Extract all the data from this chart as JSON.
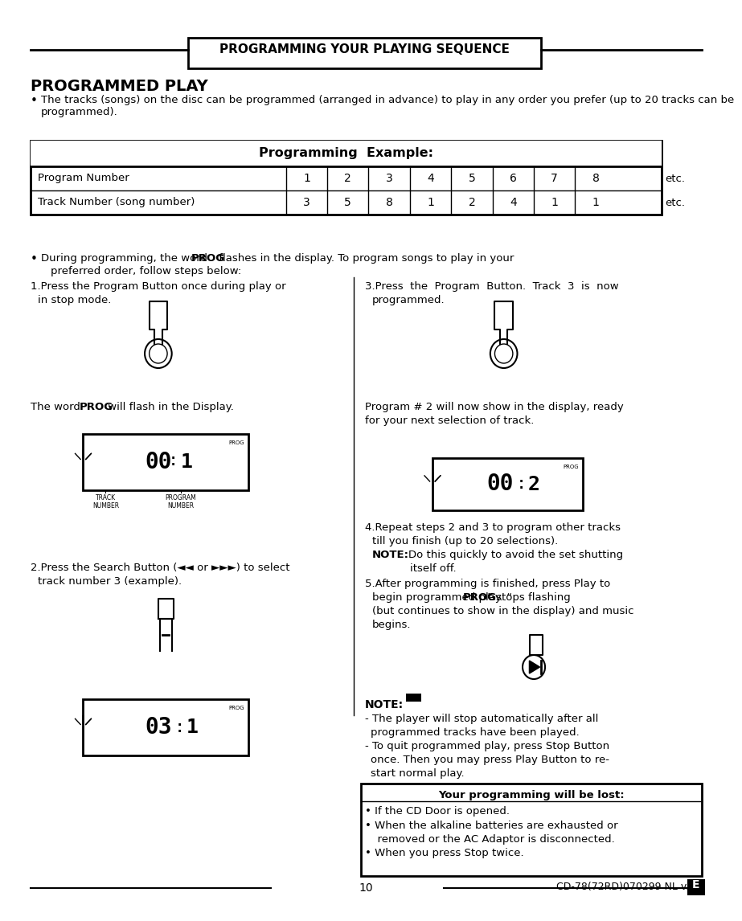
{
  "title": "PROGRAMMING YOUR PLAYING SEQUENCE",
  "section_title": "PROGRAMMED PLAY",
  "bullet1": "The tracks (songs) on the disc can be programmed (arranged in advance) to play in any order you prefer (up to 20 tracks can be programmed).",
  "table_title": "Programming  Example:",
  "table_row1_label": "Program Number",
  "table_row2_label": "Track Number (song number)",
  "table_row1_values": [
    "1",
    "2",
    "3",
    "4",
    "5",
    "6",
    "7",
    "8"
  ],
  "table_row2_values": [
    "3",
    "5",
    "8",
    "1",
    "2",
    "4",
    "1",
    "1"
  ],
  "table_etc": "etc.",
  "bullet2_pre": "During programming, the word ",
  "bullet2_prog": "PROG",
  "bullet2_post": " flashes in the display. To program songs to play in your preferred order, follow steps below:",
  "step1_left": "1.Press the Program Button once during play or\n   in stop mode.",
  "step3_right": "3.Press  the  Program  Button.  Track  3  is  now\n   programmed.",
  "word_prog_text_pre": "The word ",
  "word_prog_text_prog": "PROG",
  "word_prog_text_post": " will flash in the Display.",
  "prog2_text": "Program # 2 will now show in the display, ready\nfor your next selection of track.",
  "step4": "4.Repeat steps 2 and 3 to program other tracks\n   till you finish (up to 20 selections).\n   NOTE: Do this quickly to avoid the set shutting\n          itself off.",
  "step5": "5.After programming is finished, press Play to\n   begin programmed play. “PROG” stops flashing\n   (but continues to show in the display) and music\n   begins.",
  "note_label": "NOTE:",
  "note_line1": "- The player will stop automatically after all\n  programmed tracks have been played.",
  "note_line2": "- To quit programmed play, press Stop Button\n  once. Then you may press Play Button to re-\n  start normal play.",
  "box_title": "Your programming will be lost:",
  "box_bullet1": "• If the CD Door is opened.",
  "box_bullet2": "• When the alkaline batteries are exhausted or\n  removed or the AC Adaptor is disconnected.",
  "box_bullet3": "• When you press Stop twice.",
  "step2_left": "2.Press the Search Button (◂◂ or ▸▸▸) to select\n   track number 3 (example).",
  "page_num": "10",
  "page_code": "CD-78(72RD)070299 NL v.1",
  "page_letter": "E",
  "bg_color": "#ffffff",
  "text_color": "#000000"
}
